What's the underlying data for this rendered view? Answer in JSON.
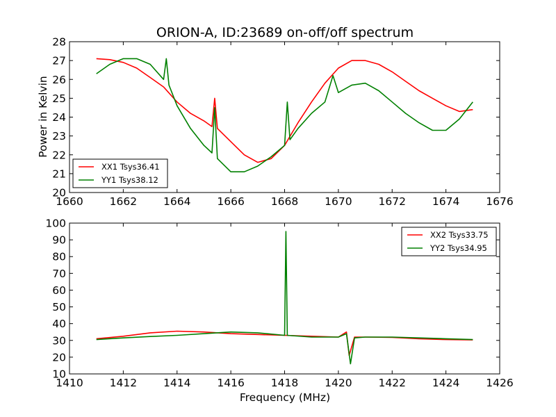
{
  "title": "ORION-A, ID:23689 on-off/off spectrum",
  "chart_data": [
    {
      "type": "line",
      "title": "ORION-A, ID:23689 on-off/off spectrum",
      "xlabel": "",
      "ylabel": "Power in Kelvin",
      "xlim": [
        1660,
        1676
      ],
      "ylim": [
        20,
        28
      ],
      "xticks": [
        "1660",
        "1662",
        "1664",
        "1666",
        "1668",
        "1670",
        "1672",
        "1674",
        "1676"
      ],
      "yticks": [
        "20",
        "21",
        "22",
        "23",
        "24",
        "25",
        "26",
        "27",
        "28"
      ],
      "grid": false,
      "legend_position": "lower-left",
      "series": [
        {
          "name": "XX1 Tsys36.41",
          "color": "#ff0000",
          "x": [
            1661.0,
            1661.5,
            1662.0,
            1662.5,
            1663.0,
            1663.5,
            1664.0,
            1664.5,
            1665.0,
            1665.3,
            1665.4,
            1665.5,
            1666.0,
            1666.5,
            1667.0,
            1667.5,
            1668.0,
            1668.5,
            1669.0,
            1669.5,
            1670.0,
            1670.5,
            1671.0,
            1671.5,
            1672.0,
            1672.5,
            1673.0,
            1673.5,
            1674.0,
            1674.5,
            1675.0
          ],
          "y": [
            27.1,
            27.05,
            26.9,
            26.6,
            26.1,
            25.6,
            24.8,
            24.2,
            23.8,
            23.5,
            25.0,
            23.4,
            22.7,
            22.0,
            21.6,
            21.8,
            22.5,
            23.7,
            24.8,
            25.8,
            26.6,
            27.0,
            27.0,
            26.8,
            26.4,
            25.9,
            25.4,
            25.0,
            24.6,
            24.3,
            24.4
          ]
        },
        {
          "name": "YY1 Tsys38.12",
          "color": "#008000",
          "x": [
            1661.0,
            1661.5,
            1662.0,
            1662.5,
            1663.0,
            1663.5,
            1663.6,
            1663.7,
            1664.0,
            1664.5,
            1665.0,
            1665.3,
            1665.4,
            1665.5,
            1666.0,
            1666.5,
            1667.0,
            1667.5,
            1668.0,
            1668.1,
            1668.2,
            1668.5,
            1669.0,
            1669.5,
            1669.8,
            1670.0,
            1670.5,
            1671.0,
            1671.5,
            1672.0,
            1672.5,
            1673.0,
            1673.5,
            1674.0,
            1674.5,
            1675.0
          ],
          "y": [
            26.3,
            26.8,
            27.1,
            27.1,
            26.8,
            26.0,
            27.1,
            25.7,
            24.6,
            23.4,
            22.5,
            22.1,
            24.5,
            21.8,
            21.1,
            21.1,
            21.4,
            21.9,
            22.5,
            24.8,
            22.8,
            23.4,
            24.2,
            24.8,
            26.2,
            25.3,
            25.7,
            25.8,
            25.4,
            24.8,
            24.2,
            23.7,
            23.3,
            23.3,
            23.9,
            24.8
          ]
        }
      ]
    },
    {
      "type": "line",
      "title": "",
      "xlabel": "Frequency (MHz)",
      "ylabel": "",
      "xlim": [
        1410,
        1426
      ],
      "ylim": [
        10,
        100
      ],
      "xticks": [
        "1410",
        "1412",
        "1414",
        "1416",
        "1418",
        "1420",
        "1422",
        "1424",
        "1426"
      ],
      "yticks": [
        "10",
        "20",
        "30",
        "40",
        "50",
        "60",
        "70",
        "80",
        "90",
        "100"
      ],
      "grid": false,
      "legend_position": "upper-right",
      "series": [
        {
          "name": "XX2 Tsys33.75",
          "color": "#ff0000",
          "x": [
            1411.0,
            1412.0,
            1413.0,
            1414.0,
            1415.0,
            1416.0,
            1417.0,
            1418.0,
            1419.0,
            1420.0,
            1420.3,
            1420.4,
            1420.6,
            1421.0,
            1422.0,
            1423.0,
            1424.0,
            1425.0
          ],
          "y": [
            31.0,
            32.5,
            34.5,
            35.5,
            35.0,
            34.0,
            33.5,
            33.0,
            32.5,
            32.0,
            35.0,
            21.0,
            32.0,
            32.0,
            31.8,
            31.0,
            30.5,
            30.3
          ]
        },
        {
          "name": "YY2 Tsys34.95",
          "color": "#008000",
          "x": [
            1411.0,
            1412.0,
            1413.0,
            1414.0,
            1415.0,
            1416.0,
            1417.0,
            1418.0,
            1418.05,
            1418.1,
            1419.0,
            1420.0,
            1420.3,
            1420.45,
            1420.6,
            1421.0,
            1422.0,
            1423.0,
            1424.0,
            1425.0
          ],
          "y": [
            30.5,
            31.5,
            32.3,
            33.0,
            34.0,
            35.0,
            34.5,
            33.0,
            95.0,
            33.0,
            32.0,
            32.0,
            34.0,
            16.0,
            31.5,
            32.0,
            32.0,
            31.5,
            31.0,
            30.5
          ]
        }
      ]
    }
  ]
}
